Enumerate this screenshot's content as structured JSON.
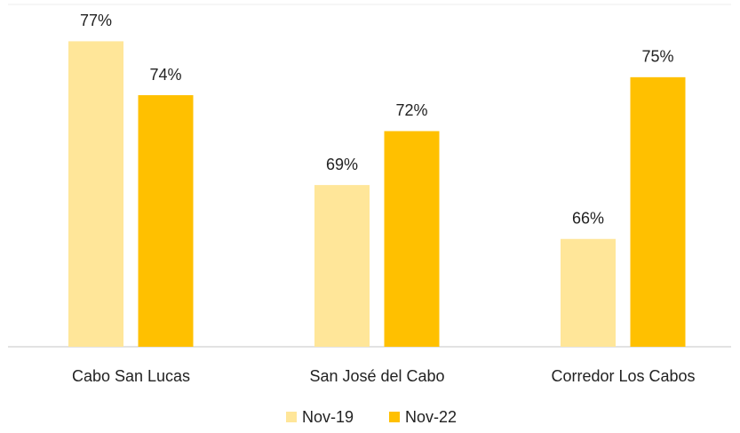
{
  "chart_data": {
    "type": "bar",
    "categories": [
      "Cabo San Lucas",
      "San José del Cabo",
      "Corredor Los Cabos"
    ],
    "series": [
      {
        "name": "Nov-19",
        "color": "#FFE699",
        "values": [
          77,
          69,
          66
        ],
        "value_labels": [
          "77%",
          "69%",
          "66%"
        ]
      },
      {
        "name": "Nov-22",
        "color": "#FFC000",
        "values": [
          74,
          72,
          75
        ],
        "value_labels": [
          "74%",
          "72%",
          "75%"
        ]
      }
    ],
    "ylim": [
      60,
      79
    ],
    "legend": "bottom"
  }
}
